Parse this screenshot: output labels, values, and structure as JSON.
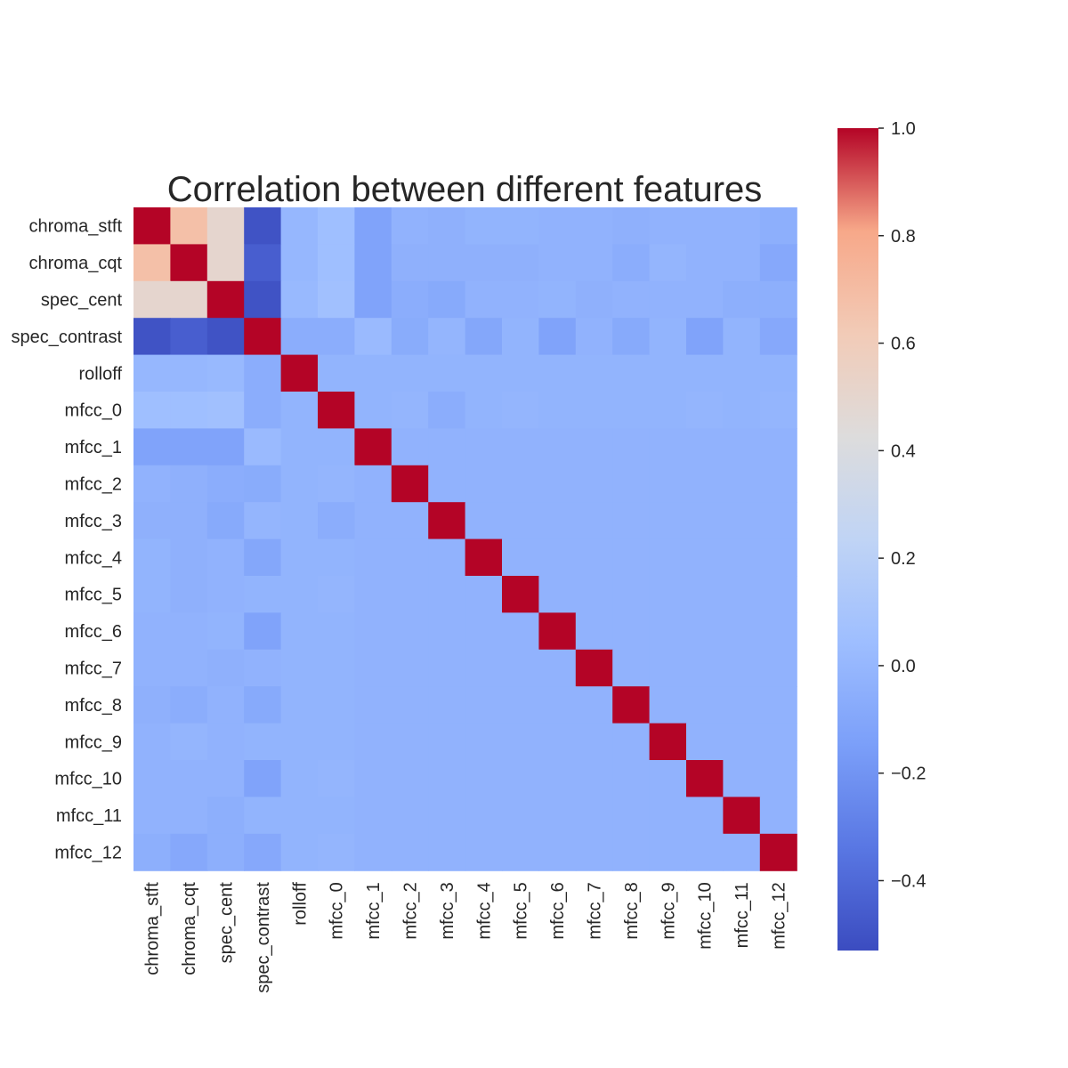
{
  "chart_data": {
    "type": "heatmap",
    "title": "Correlation between different features",
    "xlabel": "",
    "ylabel": "",
    "row_labels": [
      "chroma_stft",
      "chroma_cqt",
      "spec_cent",
      "spec_contrast",
      "rolloff",
      "mfcc_0",
      "mfcc_1",
      "mfcc_2",
      "mfcc_3",
      "mfcc_4",
      "mfcc_5",
      "mfcc_6",
      "mfcc_7",
      "mfcc_8",
      "mfcc_9",
      "mfcc_10",
      "mfcc_11",
      "mfcc_12"
    ],
    "col_labels": [
      "chroma_stft",
      "chroma_cqt",
      "spec_cent",
      "spec_contrast",
      "rolloff",
      "mfcc_0",
      "mfcc_1",
      "mfcc_2",
      "mfcc_3",
      "mfcc_4",
      "mfcc_5",
      "mfcc_6",
      "mfcc_7",
      "mfcc_8",
      "mfcc_9",
      "mfcc_10",
      "mfcc_11",
      "mfcc_12"
    ],
    "values": [
      [
        1.0,
        0.68,
        0.5,
        -0.5,
        0.0,
        0.05,
        -0.12,
        -0.03,
        -0.04,
        -0.02,
        -0.02,
        -0.03,
        -0.03,
        -0.04,
        -0.03,
        -0.03,
        -0.03,
        -0.05
      ],
      [
        0.68,
        1.0,
        0.5,
        -0.45,
        0.0,
        0.05,
        -0.12,
        -0.04,
        -0.04,
        -0.04,
        -0.04,
        -0.03,
        -0.03,
        -0.06,
        -0.01,
        -0.03,
        -0.03,
        -0.09
      ],
      [
        0.5,
        0.5,
        1.0,
        -0.5,
        0.01,
        0.06,
        -0.12,
        -0.06,
        -0.08,
        -0.03,
        -0.03,
        -0.02,
        -0.04,
        -0.03,
        -0.03,
        -0.03,
        -0.05,
        -0.05
      ],
      [
        -0.5,
        -0.45,
        -0.5,
        1.0,
        -0.06,
        -0.06,
        0.02,
        -0.07,
        -0.01,
        -0.1,
        -0.02,
        -0.12,
        -0.03,
        -0.08,
        -0.02,
        -0.12,
        -0.02,
        -0.09
      ],
      [
        0.0,
        0.0,
        0.01,
        -0.06,
        1.0,
        -0.02,
        -0.02,
        -0.02,
        -0.02,
        -0.02,
        -0.02,
        -0.02,
        -0.02,
        -0.02,
        -0.02,
        -0.02,
        -0.02,
        -0.02
      ],
      [
        0.05,
        0.05,
        0.06,
        -0.06,
        -0.02,
        1.0,
        -0.02,
        -0.01,
        -0.06,
        -0.02,
        -0.01,
        -0.02,
        -0.02,
        -0.02,
        -0.02,
        -0.01,
        -0.02,
        -0.01
      ],
      [
        -0.12,
        -0.12,
        -0.12,
        0.02,
        -0.02,
        -0.02,
        1.0,
        -0.03,
        -0.03,
        -0.03,
        -0.03,
        -0.03,
        -0.03,
        -0.03,
        -0.03,
        -0.03,
        -0.03,
        -0.03
      ],
      [
        -0.03,
        -0.04,
        -0.06,
        -0.07,
        -0.02,
        -0.01,
        -0.03,
        1.0,
        -0.03,
        -0.03,
        -0.03,
        -0.03,
        -0.03,
        -0.03,
        -0.03,
        -0.03,
        -0.03,
        -0.03
      ],
      [
        -0.04,
        -0.04,
        -0.08,
        -0.01,
        -0.02,
        -0.06,
        -0.03,
        -0.03,
        1.0,
        -0.03,
        -0.03,
        -0.03,
        -0.03,
        -0.03,
        -0.03,
        -0.03,
        -0.03,
        -0.03
      ],
      [
        -0.02,
        -0.04,
        -0.03,
        -0.1,
        -0.02,
        -0.02,
        -0.03,
        -0.03,
        -0.03,
        1.0,
        -0.03,
        -0.03,
        -0.03,
        -0.03,
        -0.03,
        -0.03,
        -0.03,
        -0.03
      ],
      [
        -0.02,
        -0.04,
        -0.03,
        -0.02,
        -0.02,
        -0.01,
        -0.03,
        -0.03,
        -0.03,
        -0.03,
        1.0,
        -0.03,
        -0.03,
        -0.03,
        -0.03,
        -0.03,
        -0.03,
        -0.03
      ],
      [
        -0.03,
        -0.03,
        -0.02,
        -0.12,
        -0.02,
        -0.02,
        -0.03,
        -0.03,
        -0.03,
        -0.03,
        -0.03,
        1.0,
        -0.03,
        -0.03,
        -0.03,
        -0.03,
        -0.03,
        -0.03
      ],
      [
        -0.03,
        -0.03,
        -0.04,
        -0.03,
        -0.02,
        -0.02,
        -0.03,
        -0.03,
        -0.03,
        -0.03,
        -0.03,
        -0.03,
        1.0,
        -0.03,
        -0.03,
        -0.03,
        -0.03,
        -0.03
      ],
      [
        -0.04,
        -0.06,
        -0.03,
        -0.08,
        -0.02,
        -0.02,
        -0.03,
        -0.03,
        -0.03,
        -0.03,
        -0.03,
        -0.03,
        -0.03,
        1.0,
        -0.03,
        -0.03,
        -0.03,
        -0.03
      ],
      [
        -0.03,
        -0.01,
        -0.03,
        -0.02,
        -0.02,
        -0.02,
        -0.03,
        -0.03,
        -0.03,
        -0.03,
        -0.03,
        -0.03,
        -0.03,
        -0.03,
        1.0,
        -0.03,
        -0.03,
        -0.03
      ],
      [
        -0.03,
        -0.03,
        -0.03,
        -0.12,
        -0.02,
        -0.01,
        -0.03,
        -0.03,
        -0.03,
        -0.03,
        -0.03,
        -0.03,
        -0.03,
        -0.03,
        -0.03,
        1.0,
        -0.03,
        -0.03
      ],
      [
        -0.03,
        -0.03,
        -0.05,
        -0.02,
        -0.02,
        -0.02,
        -0.03,
        -0.03,
        -0.03,
        -0.03,
        -0.03,
        -0.03,
        -0.03,
        -0.03,
        -0.03,
        -0.03,
        1.0,
        -0.03
      ],
      [
        -0.05,
        -0.09,
        -0.05,
        -0.09,
        -0.02,
        -0.01,
        -0.03,
        -0.03,
        -0.03,
        -0.03,
        -0.03,
        -0.03,
        -0.03,
        -0.03,
        -0.03,
        -0.03,
        -0.03,
        1.0
      ]
    ],
    "colormap": "coolwarm",
    "vmin": -0.53,
    "vmax": 1.0,
    "colorbar_ticks": [
      1.0,
      0.8,
      0.6,
      0.4,
      0.2,
      0.0,
      -0.2,
      -0.4
    ],
    "colorbar_tick_labels": [
      "1.0",
      "0.8",
      "0.6",
      "0.4",
      "0.2",
      "0.0",
      "−0.2",
      "−0.4"
    ],
    "grid": false,
    "colorbar_position": "right"
  }
}
